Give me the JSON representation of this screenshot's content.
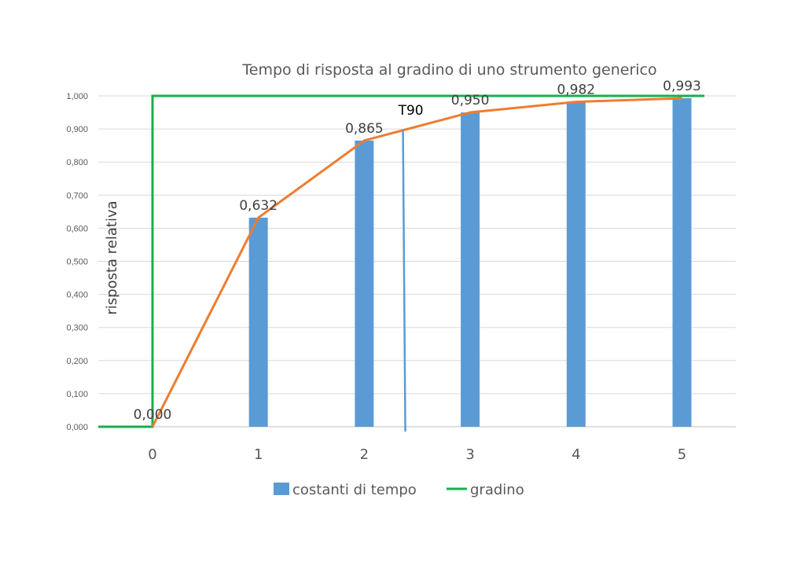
{
  "chart_data": {
    "type": "bar",
    "title": "Tempo di risposta al gradino di uno strumento generico",
    "ylabel": "risposta relativa",
    "xlabel": "",
    "categories": [
      "0",
      "1",
      "2",
      "3",
      "4",
      "5"
    ],
    "ylim": [
      0,
      1
    ],
    "y_ticks": [
      "0,000",
      "0,100",
      "0,200",
      "0,300",
      "0,400",
      "0,500",
      "0,600",
      "0,700",
      "0,800",
      "0,900",
      "1,000"
    ],
    "grid": true,
    "legend_position": "bottom",
    "series": [
      {
        "name": "costanti di tempo",
        "kind": "bar",
        "color": "#5B9BD5",
        "values": [
          0.0,
          0.632,
          0.865,
          0.95,
          0.982,
          0.993
        ]
      },
      {
        "name": "gradino",
        "kind": "step-line",
        "color": "#1AAE4E",
        "x": [
          -0.5,
          0,
          0,
          5.0
        ],
        "y": [
          0,
          0,
          1,
          1
        ]
      },
      {
        "kind": "line",
        "color": "#ED7D31",
        "x": [
          0,
          1,
          2,
          3,
          4,
          5
        ],
        "y": [
          0.0,
          0.632,
          0.865,
          0.95,
          0.982,
          0.993
        ]
      }
    ],
    "data_labels": [
      "0,000",
      "0,632",
      "0,865",
      "0,950",
      "0,982",
      "0,993"
    ],
    "annotations": [
      {
        "text": "T90",
        "x": 2.38,
        "marker": "vertical-line",
        "color": "#5B9BD5"
      }
    ]
  }
}
